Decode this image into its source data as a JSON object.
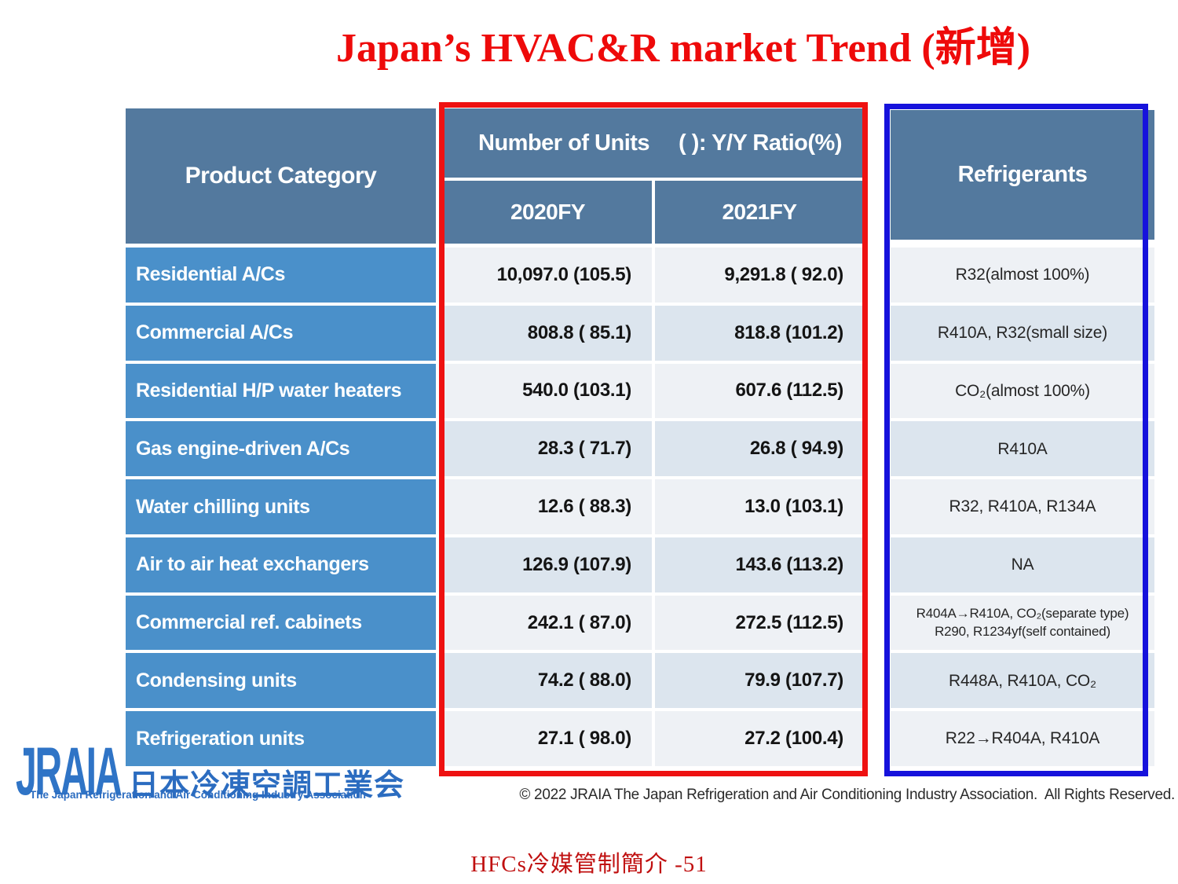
{
  "title": "Japan’s HVAC&R market Trend (新增)",
  "table": {
    "headers": {
      "product_category": "Product Category",
      "number_of_units": "Number of Units",
      "yy_ratio": "( ): Y/Y Ratio(%)",
      "fy2020": "2020FY",
      "fy2021": "2021FY",
      "refrigerants": "Refrigerants"
    },
    "rows": [
      {
        "category": "Residential A/Cs",
        "fy2020": "10,097.0 (105.5)",
        "fy2021": "9,291.8 ( 92.0)",
        "refrigerants": "R32(almost 100%)"
      },
      {
        "category": "Commercial A/Cs",
        "fy2020": "808.8 ( 85.1)",
        "fy2021": "818.8 (101.2)",
        "refrigerants": "R410A,  R32(small size)"
      },
      {
        "category": "Residential H/P water heaters",
        "fy2020": "540.0 (103.1)",
        "fy2021": "607.6 (112.5)",
        "refrigerants": "CO₂(almost 100%)"
      },
      {
        "category": "Gas engine-driven A/Cs",
        "fy2020": "28.3 ( 71.7)",
        "fy2021": "26.8 ( 94.9)",
        "refrigerants": "R410A"
      },
      {
        "category": "Water chilling units",
        "fy2020": "12.6 ( 88.3)",
        "fy2021": "13.0 (103.1)",
        "refrigerants": "R32,  R410A,  R134A"
      },
      {
        "category": "Air to air heat exchangers",
        "fy2020": "126.9 (107.9)",
        "fy2021": "143.6 (113.2)",
        "refrigerants": "NA"
      },
      {
        "category": "Commercial ref. cabinets",
        "fy2020": "242.1 ( 87.0)",
        "fy2021": "272.5 (112.5)",
        "refrigerants": "R404A→R410A,  CO₂(separate type)",
        "refrigerants_line2": "R290,  R1234yf(self contained)"
      },
      {
        "category": "Condensing units",
        "fy2020": "74.2 ( 88.0)",
        "fy2021": "79.9 (107.7)",
        "refrigerants": "R448A,  R410A,  CO₂"
      },
      {
        "category": "Refrigeration units",
        "fy2020": "27.1 ( 98.0)",
        "fy2021": "27.2 (100.4)",
        "refrigerants": "R22→R404A,  R410A"
      }
    ]
  },
  "logo": {
    "wordmark": "JRAIA",
    "name_jp": "日本冷凍空調工業会",
    "name_en": "The Japan Refrigeration and Air Conditioning Industry Association"
  },
  "copyright": "© 2022 JRAIA The Japan Refrigeration and Air Conditioning Industry Association.  All Rights Reserved.",
  "footer": "HFCs冷媒管制簡介 -51",
  "colors": {
    "red_box": "#ee1111",
    "blue_box": "#1612dc",
    "header_blue": "#53799e",
    "label_blue": "#4a90ca",
    "row_light": "#eef1f5",
    "row_dark": "#dce5ee",
    "title_red": "#ee0a0a",
    "footer_red": "#c01010",
    "logo_blue": "#2e75c4"
  }
}
